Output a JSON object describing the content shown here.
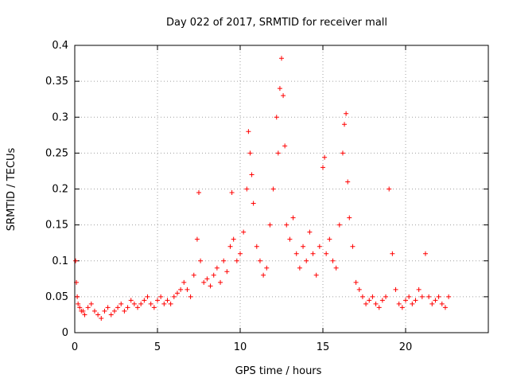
{
  "chart_data": {
    "type": "scatter",
    "title": "Day 022 of 2017, SRMTID for receiver mall",
    "xlabel": "GPS time / hours",
    "ylabel": "SRMTID / TECUs",
    "xlim": [
      0,
      25
    ],
    "ylim": [
      0,
      0.4
    ],
    "x_ticks": [
      0,
      5,
      10,
      15,
      20
    ],
    "x_tick_labels": [
      "0",
      "5",
      "10",
      "15",
      "20"
    ],
    "y_ticks": [
      0,
      0.05,
      0.1,
      0.15,
      0.2,
      0.25,
      0.3,
      0.35,
      0.4
    ],
    "y_tick_labels": [
      "0",
      "0.05",
      "0.1",
      "0.15",
      "0.2",
      "0.25",
      "0.3",
      "0.35",
      "0.4"
    ],
    "grid": true,
    "marker": "+",
    "color": "#ff0000",
    "series": [
      {
        "name": "SRMTID",
        "x": [
          0.05,
          0.1,
          0.15,
          0.2,
          0.3,
          0.4,
          0.5,
          0.6,
          0.8,
          1.0,
          1.2,
          1.4,
          1.6,
          1.8,
          2.0,
          2.2,
          2.4,
          2.6,
          2.8,
          3.0,
          3.2,
          3.4,
          3.6,
          3.8,
          4.0,
          4.2,
          4.4,
          4.6,
          4.8,
          5.0,
          5.2,
          5.4,
          5.6,
          5.8,
          6.0,
          6.2,
          6.4,
          6.6,
          6.8,
          7.0,
          7.2,
          7.4,
          7.5,
          7.6,
          7.8,
          8.0,
          8.2,
          8.4,
          8.6,
          8.8,
          9.0,
          9.2,
          9.4,
          9.5,
          9.6,
          9.8,
          10.0,
          10.2,
          10.4,
          10.5,
          10.6,
          10.7,
          10.8,
          11.0,
          11.2,
          11.4,
          11.6,
          11.8,
          12.0,
          12.2,
          12.3,
          12.4,
          12.5,
          12.6,
          12.7,
          12.8,
          13.0,
          13.2,
          13.4,
          13.6,
          13.8,
          14.0,
          14.2,
          14.4,
          14.6,
          14.8,
          15.0,
          15.1,
          15.2,
          15.4,
          15.6,
          15.8,
          16.0,
          16.2,
          16.3,
          16.4,
          16.5,
          16.6,
          16.8,
          17.0,
          17.2,
          17.4,
          17.6,
          17.8,
          18.0,
          18.2,
          18.4,
          18.6,
          18.8,
          19.0,
          19.2,
          19.4,
          19.6,
          19.8,
          20.0,
          20.2,
          20.4,
          20.6,
          20.8,
          21.0,
          21.2,
          21.4,
          21.6,
          21.8,
          22.0,
          22.2,
          22.4,
          22.6
        ],
        "y": [
          0.1,
          0.07,
          0.05,
          0.04,
          0.035,
          0.03,
          0.03,
          0.025,
          0.035,
          0.04,
          0.03,
          0.025,
          0.02,
          0.03,
          0.035,
          0.025,
          0.03,
          0.035,
          0.04,
          0.03,
          0.035,
          0.045,
          0.04,
          0.035,
          0.04,
          0.045,
          0.05,
          0.04,
          0.035,
          0.045,
          0.05,
          0.04,
          0.045,
          0.04,
          0.05,
          0.055,
          0.06,
          0.07,
          0.06,
          0.05,
          0.08,
          0.13,
          0.195,
          0.1,
          0.07,
          0.075,
          0.065,
          0.08,
          0.09,
          0.07,
          0.1,
          0.085,
          0.12,
          0.195,
          0.13,
          0.1,
          0.11,
          0.14,
          0.2,
          0.28,
          0.25,
          0.22,
          0.18,
          0.12,
          0.1,
          0.08,
          0.09,
          0.15,
          0.2,
          0.3,
          0.25,
          0.34,
          0.382,
          0.33,
          0.26,
          0.15,
          0.13,
          0.16,
          0.11,
          0.09,
          0.12,
          0.1,
          0.14,
          0.11,
          0.08,
          0.12,
          0.23,
          0.244,
          0.11,
          0.13,
          0.1,
          0.09,
          0.15,
          0.25,
          0.29,
          0.305,
          0.21,
          0.16,
          0.12,
          0.07,
          0.06,
          0.05,
          0.04,
          0.045,
          0.05,
          0.04,
          0.035,
          0.045,
          0.05,
          0.2,
          0.11,
          0.06,
          0.04,
          0.035,
          0.045,
          0.05,
          0.04,
          0.045,
          0.06,
          0.05,
          0.11,
          0.05,
          0.04,
          0.045,
          0.05,
          0.04,
          0.035,
          0.05
        ]
      }
    ]
  }
}
